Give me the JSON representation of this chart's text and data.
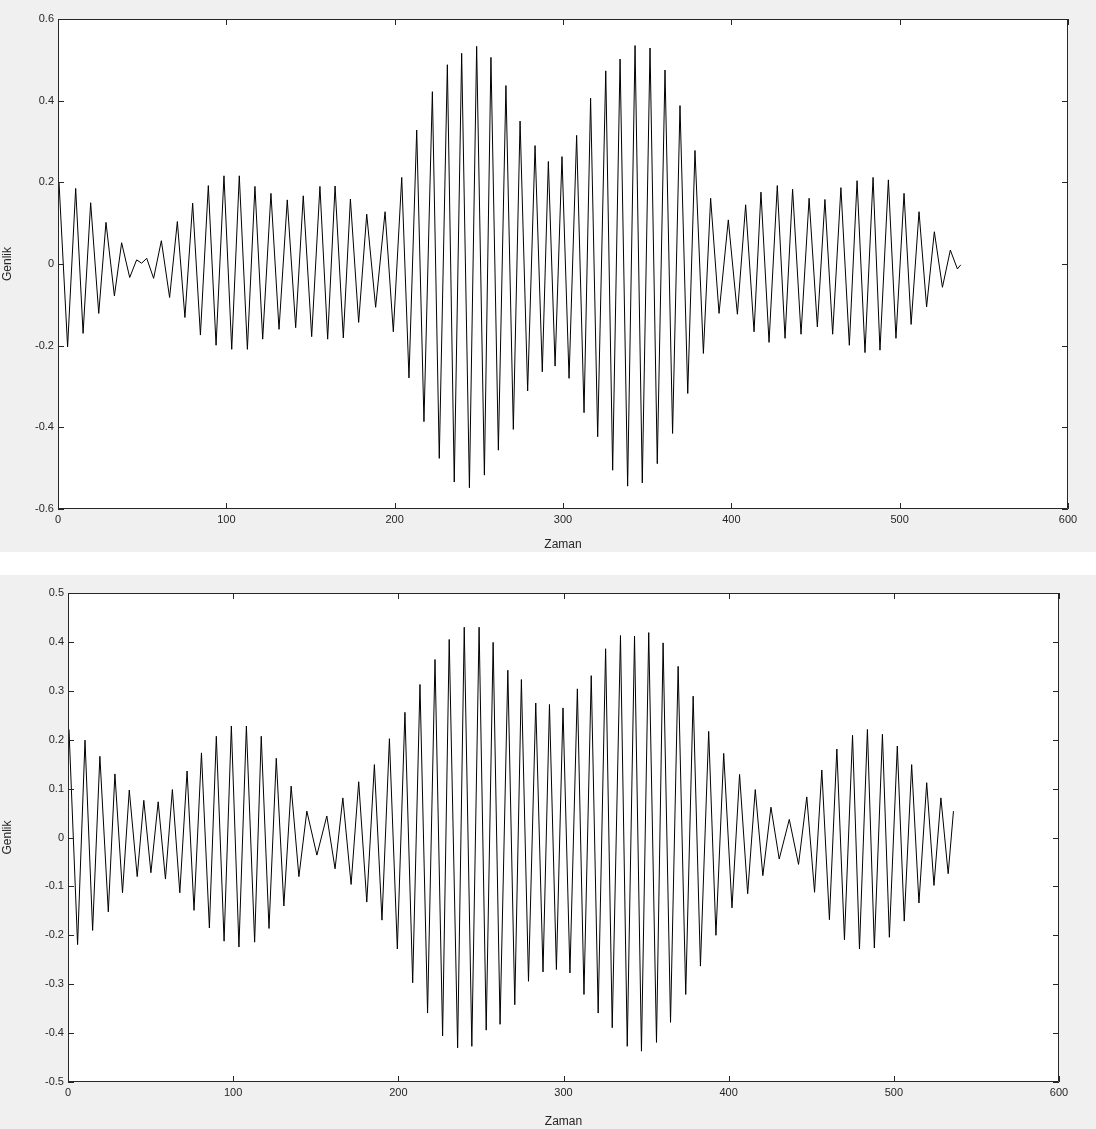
{
  "chart_data": [
    {
      "type": "line",
      "xlabel": "Zaman",
      "ylabel": "Genlik",
      "xlim": [
        0,
        600
      ],
      "xticks": [
        0,
        100,
        200,
        300,
        400,
        500,
        600
      ],
      "ylim": [
        -0.6,
        0.6
      ],
      "yticks": [
        -0.6,
        -0.4,
        -0.2,
        0,
        0.2,
        0.4,
        0.6
      ],
      "series": [
        {
          "color": "#000000",
          "x": [
            0.6,
            5.7,
            10.5,
            14.9,
            19.4,
            24.2,
            28.5,
            33.5,
            37.8,
            42.6,
            46.7,
            49.7,
            52.7,
            56.8,
            61.4,
            66.3,
            70.9,
            75.4,
            80.0,
            84.6,
            89.3,
            93.9,
            98.6,
            103.2,
            107.7,
            112.5,
            117.0,
            121.6,
            126.5,
            131.3,
            136.2,
            141.2,
            145.7,
            150.7,
            155.6,
            160.2,
            164.6,
            169.5,
            173.7,
            178.6,
            183.4,
            188.7,
            194.3,
            199.2,
            204.2,
            208.5,
            213.1,
            217.4,
            222.4,
            226.5,
            231.3,
            235.4,
            239.8,
            244.4,
            248.7,
            253.3,
            257.2,
            261.6,
            266.1,
            270.5,
            274.5,
            279.0,
            283.4,
            287.7,
            291.3,
            295.3,
            299.4,
            303.6,
            308.1,
            312.5,
            316.4,
            320.6,
            325.4,
            329.5,
            333.9,
            338.4,
            342.8,
            347.1,
            351.7,
            356.0,
            360.6,
            365.1,
            369.5,
            374.1,
            378.4,
            383.4,
            387.7,
            392.7,
            398.2,
            403.6,
            408.5,
            413.5,
            417.6,
            422.4,
            427.3,
            431.9,
            436.4,
            441.4,
            446.2,
            451.1,
            455.6,
            460.2,
            465.1,
            470.1,
            474.7,
            479.4,
            484.2,
            488.3,
            493.3,
            497.8,
            502.6,
            506.8,
            511.5,
            516.0,
            520.6,
            525.4,
            530.1,
            534.3,
            536.3
          ],
          "values": [
            0.2,
            -0.203,
            0.185,
            -0.17,
            0.15,
            -0.121,
            0.102,
            -0.078,
            0.052,
            -0.033,
            0.01,
            0.002,
            0.014,
            -0.035,
            0.057,
            -0.082,
            0.104,
            -0.131,
            0.149,
            -0.174,
            0.192,
            -0.199,
            0.216,
            -0.209,
            0.216,
            -0.209,
            0.19,
            -0.184,
            0.173,
            -0.16,
            0.157,
            -0.156,
            0.167,
            -0.178,
            0.19,
            -0.184,
            0.191,
            -0.181,
            0.159,
            -0.143,
            0.122,
            -0.106,
            0.128,
            -0.166,
            0.212,
            -0.279,
            0.328,
            -0.386,
            0.422,
            -0.476,
            0.488,
            -0.534,
            0.516,
            -0.548,
            0.533,
            -0.517,
            0.506,
            -0.456,
            0.437,
            -0.405,
            0.35,
            -0.311,
            0.29,
            -0.264,
            0.251,
            -0.25,
            0.263,
            -0.28,
            0.315,
            -0.364,
            0.406,
            -0.423,
            0.473,
            -0.505,
            0.502,
            -0.544,
            0.535,
            -0.536,
            0.529,
            -0.489,
            0.475,
            -0.415,
            0.388,
            -0.317,
            0.278,
            -0.219,
            0.161,
            -0.121,
            0.108,
            -0.123,
            0.145,
            -0.166,
            0.176,
            -0.192,
            0.192,
            -0.182,
            0.183,
            -0.172,
            0.161,
            -0.154,
            0.158,
            -0.172,
            0.187,
            -0.199,
            0.204,
            -0.217,
            0.212,
            -0.211,
            0.206,
            -0.182,
            0.173,
            -0.148,
            0.128,
            -0.105,
            0.079,
            -0.057,
            0.034,
            -0.012,
            -0.002
          ]
        }
      ]
    },
    {
      "type": "line",
      "xlabel": "Zaman",
      "ylabel": "Genlik",
      "xlim": [
        0,
        600
      ],
      "xticks": [
        0,
        100,
        200,
        300,
        400,
        500,
        600
      ],
      "ylim": [
        -0.5,
        0.5
      ],
      "yticks": [
        -0.5,
        -0.4,
        -0.3,
        -0.2,
        -0.1,
        0,
        0.1,
        0.2,
        0.3,
        0.4,
        0.5
      ],
      "series": [
        {
          "color": "#000000",
          "x": [
            0.6,
            5.8,
            10.3,
            14.9,
            19.3,
            24.4,
            28.4,
            33.0,
            37.1,
            41.9,
            45.9,
            50.2,
            54.6,
            59.0,
            63.2,
            67.7,
            72.1,
            76.3,
            80.8,
            85.6,
            89.8,
            94.5,
            98.9,
            103.5,
            108.0,
            113.0,
            117.0,
            121.7,
            126.1,
            130.7,
            135.1,
            139.8,
            144.6,
            150.7,
            156.7,
            161.7,
            166.4,
            171.4,
            176.0,
            180.9,
            185.5,
            190.1,
            194.6,
            199.4,
            204.0,
            208.7,
            213.1,
            217.7,
            222.2,
            226.8,
            230.8,
            235.9,
            239.9,
            244.5,
            248.9,
            253.2,
            257.4,
            261.6,
            266.3,
            270.5,
            274.5,
            278.8,
            283.2,
            287.6,
            291.5,
            295.7,
            299.7,
            303.9,
            308.4,
            312.4,
            316.8,
            321.0,
            325.5,
            329.5,
            334.5,
            338.6,
            343.0,
            347.2,
            351.6,
            356.3,
            360.3,
            364.8,
            369.4,
            374.0,
            378.5,
            382.9,
            387.9,
            392.3,
            397.0,
            402.0,
            406.6,
            411.5,
            416.1,
            420.7,
            425.6,
            430.6,
            436.7,
            442.3,
            447.3,
            452.0,
            456.4,
            461.0,
            465.5,
            470.1,
            475.0,
            479.2,
            484.0,
            488.2,
            493.1,
            497.3,
            502.1,
            506.3,
            510.8,
            515.2,
            519.9,
            524.3,
            528.5,
            532.9,
            536.1
          ],
          "values": [
            0.221,
            -0.219,
            0.199,
            -0.19,
            0.166,
            -0.152,
            0.13,
            -0.113,
            0.097,
            -0.08,
            0.076,
            -0.072,
            0.073,
            -0.085,
            0.098,
            -0.113,
            0.136,
            -0.149,
            0.173,
            -0.185,
            0.207,
            -0.212,
            0.228,
            -0.224,
            0.228,
            -0.214,
            0.207,
            -0.186,
            0.162,
            -0.14,
            0.105,
            -0.08,
            0.054,
            -0.036,
            0.044,
            -0.064,
            0.081,
            -0.096,
            0.114,
            -0.132,
            0.149,
            -0.169,
            0.202,
            -0.228,
            0.256,
            -0.297,
            0.313,
            -0.359,
            0.364,
            -0.406,
            0.405,
            -0.43,
            0.43,
            -0.427,
            0.43,
            -0.394,
            0.399,
            -0.382,
            0.342,
            -0.342,
            0.323,
            -0.294,
            0.275,
            -0.275,
            0.272,
            -0.27,
            0.265,
            -0.277,
            0.304,
            -0.321,
            0.331,
            -0.359,
            0.386,
            -0.389,
            0.413,
            -0.427,
            0.412,
            -0.437,
            0.419,
            -0.419,
            0.398,
            -0.378,
            0.35,
            -0.321,
            0.289,
            -0.263,
            0.217,
            -0.2,
            0.172,
            -0.144,
            0.129,
            -0.115,
            0.098,
            -0.078,
            0.062,
            -0.044,
            0.037,
            -0.055,
            0.083,
            -0.112,
            0.138,
            -0.168,
            0.181,
            -0.209,
            0.209,
            -0.228,
            0.221,
            -0.226,
            0.211,
            -0.204,
            0.187,
            -0.171,
            0.149,
            -0.134,
            0.112,
            -0.098,
            0.081,
            -0.074,
            0.054
          ]
        }
      ]
    }
  ]
}
